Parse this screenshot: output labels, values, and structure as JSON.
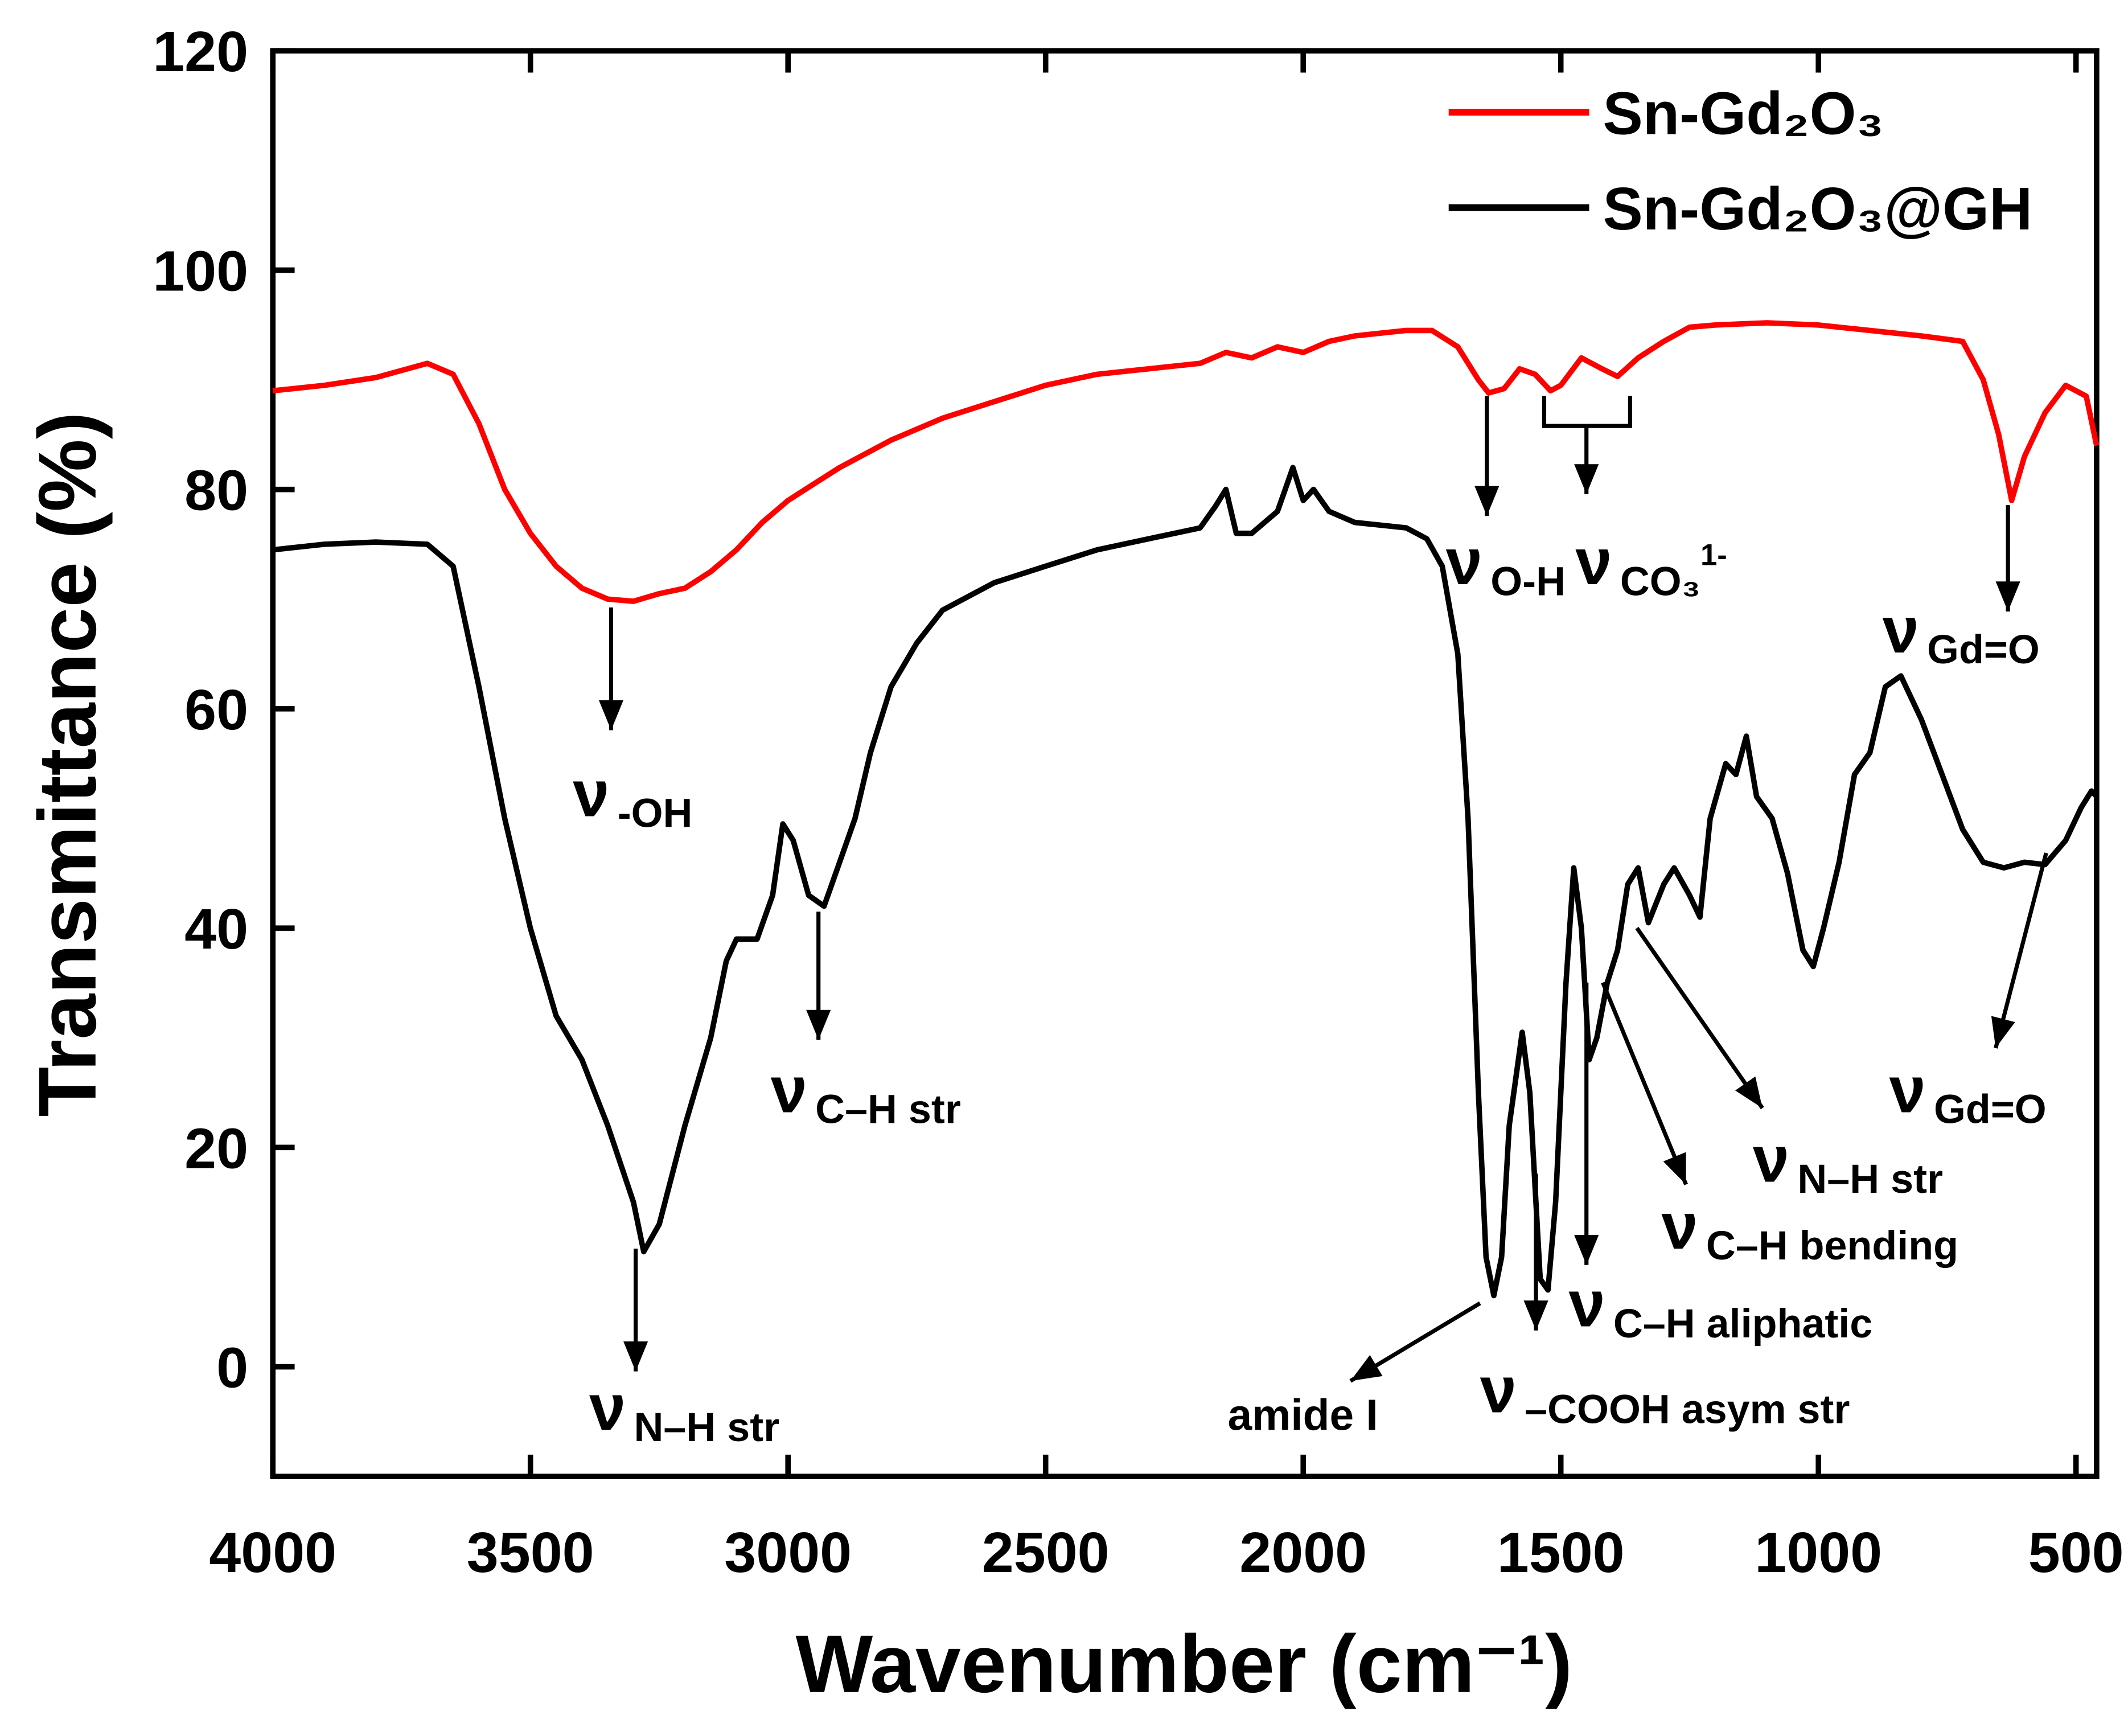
{
  "chart_data": {
    "type": "line",
    "x_label": "Wavenumber (cm⁻¹)",
    "y_label": "Transmittance (%)",
    "xlim": [
      4000,
      460
    ],
    "ylim": [
      -10,
      120
    ],
    "xticks": [
      4000,
      3500,
      3000,
      2500,
      2000,
      1500,
      1000,
      500
    ],
    "yticks": [
      0,
      20,
      40,
      60,
      80,
      100,
      120
    ],
    "legend": "upper right",
    "series": [
      {
        "name": "Sn-Gd₂O₃",
        "color": "#ff0000",
        "x": [
          4000,
          3900,
          3800,
          3700,
          3650,
          3600,
          3550,
          3500,
          3450,
          3400,
          3350,
          3300,
          3250,
          3200,
          3150,
          3100,
          3050,
          3000,
          2950,
          2900,
          2800,
          2700,
          2600,
          2500,
          2400,
          2300,
          2200,
          2150,
          2100,
          2050,
          2000,
          1950,
          1900,
          1800,
          1750,
          1700,
          1660,
          1640,
          1610,
          1580,
          1550,
          1520,
          1500,
          1460,
          1420,
          1390,
          1350,
          1300,
          1250,
          1200,
          1100,
          1000,
          900,
          800,
          720,
          680,
          650,
          625,
          600,
          560,
          520,
          480,
          460
        ],
        "values": [
          89,
          89.5,
          90.2,
          91.5,
          90.5,
          86,
          80,
          76,
          73,
          71,
          70,
          69.8,
          70.5,
          71,
          72.5,
          74.5,
          77,
          79,
          80.5,
          82,
          84.5,
          86.5,
          88,
          89.5,
          90.5,
          91,
          91.5,
          92.5,
          92,
          93,
          92.5,
          93.5,
          94,
          94.5,
          94.5,
          93,
          90,
          88.8,
          89.2,
          91,
          90.5,
          89,
          89.5,
          92,
          91,
          90.3,
          92,
          93.5,
          94.8,
          95,
          95.2,
          95,
          94.5,
          94,
          93.5,
          90,
          85,
          79,
          83,
          87,
          89.5,
          88.5,
          84
        ]
      },
      {
        "name": "Sn-Gd₂O₃@GH",
        "color": "#000000",
        "x": [
          4000,
          3900,
          3800,
          3700,
          3650,
          3600,
          3550,
          3500,
          3450,
          3400,
          3350,
          3300,
          3280,
          3250,
          3200,
          3150,
          3120,
          3100,
          3060,
          3030,
          3010,
          2990,
          2960,
          2930,
          2900,
          2870,
          2840,
          2800,
          2750,
          2700,
          2600,
          2500,
          2400,
          2300,
          2200,
          2170,
          2150,
          2130,
          2100,
          2050,
          2020,
          2000,
          1980,
          1950,
          1900,
          1800,
          1760,
          1730,
          1700,
          1680,
          1660,
          1645,
          1630,
          1615,
          1600,
          1575,
          1560,
          1540,
          1525,
          1510,
          1490,
          1475,
          1460,
          1445,
          1430,
          1410,
          1390,
          1370,
          1350,
          1330,
          1300,
          1280,
          1250,
          1230,
          1210,
          1180,
          1160,
          1140,
          1120,
          1090,
          1060,
          1030,
          1010,
          990,
          960,
          930,
          900,
          870,
          840,
          800,
          760,
          720,
          680,
          640,
          600,
          560,
          520,
          490,
          470,
          460
        ],
        "values": [
          74.5,
          75,
          75.2,
          75,
          73,
          62,
          50,
          40,
          32,
          28,
          22,
          15,
          10.5,
          13,
          22,
          30,
          37,
          39,
          39,
          43,
          49.5,
          48,
          43,
          42,
          46,
          50,
          56,
          62,
          66,
          69,
          71.5,
          73,
          74.5,
          75.5,
          76.5,
          78.5,
          80,
          76,
          76,
          78,
          82,
          79,
          80,
          78,
          77,
          76.5,
          75.5,
          73,
          65,
          50,
          25,
          10,
          6.5,
          10,
          22,
          30.5,
          25,
          8,
          7,
          15,
          35,
          45.5,
          40,
          28,
          30,
          35,
          38,
          44,
          45.5,
          40.5,
          44,
          45.5,
          43,
          41,
          50,
          55,
          54,
          57.5,
          52,
          50,
          45,
          38,
          36.5,
          40,
          46,
          54,
          56,
          62,
          63,
          59,
          54,
          49,
          46,
          45.5,
          46,
          45.8,
          48,
          51,
          52.5,
          52
        ]
      }
    ],
    "annotations": [
      {
        "text": "ν",
        "sub": "-OH"
      },
      {
        "text": "ν",
        "sub": "N–H str"
      },
      {
        "text": "ν",
        "sub": "C–H str"
      },
      {
        "text": "amide I"
      },
      {
        "text": "ν",
        "sub": "–COOH asym str"
      },
      {
        "text": "ν",
        "sub": "C–H aliphatic"
      },
      {
        "text": "ν",
        "sub": "C–H bending"
      },
      {
        "text": "ν",
        "sub": "N–H str"
      },
      {
        "text": "ν",
        "sub": "Gd=O"
      },
      {
        "text": "ν",
        "sub": "Gd=O"
      },
      {
        "text": "ν",
        "sub": "O-H"
      },
      {
        "text": "ν",
        "sub": "CO₃",
        "sup": "1-"
      }
    ]
  }
}
